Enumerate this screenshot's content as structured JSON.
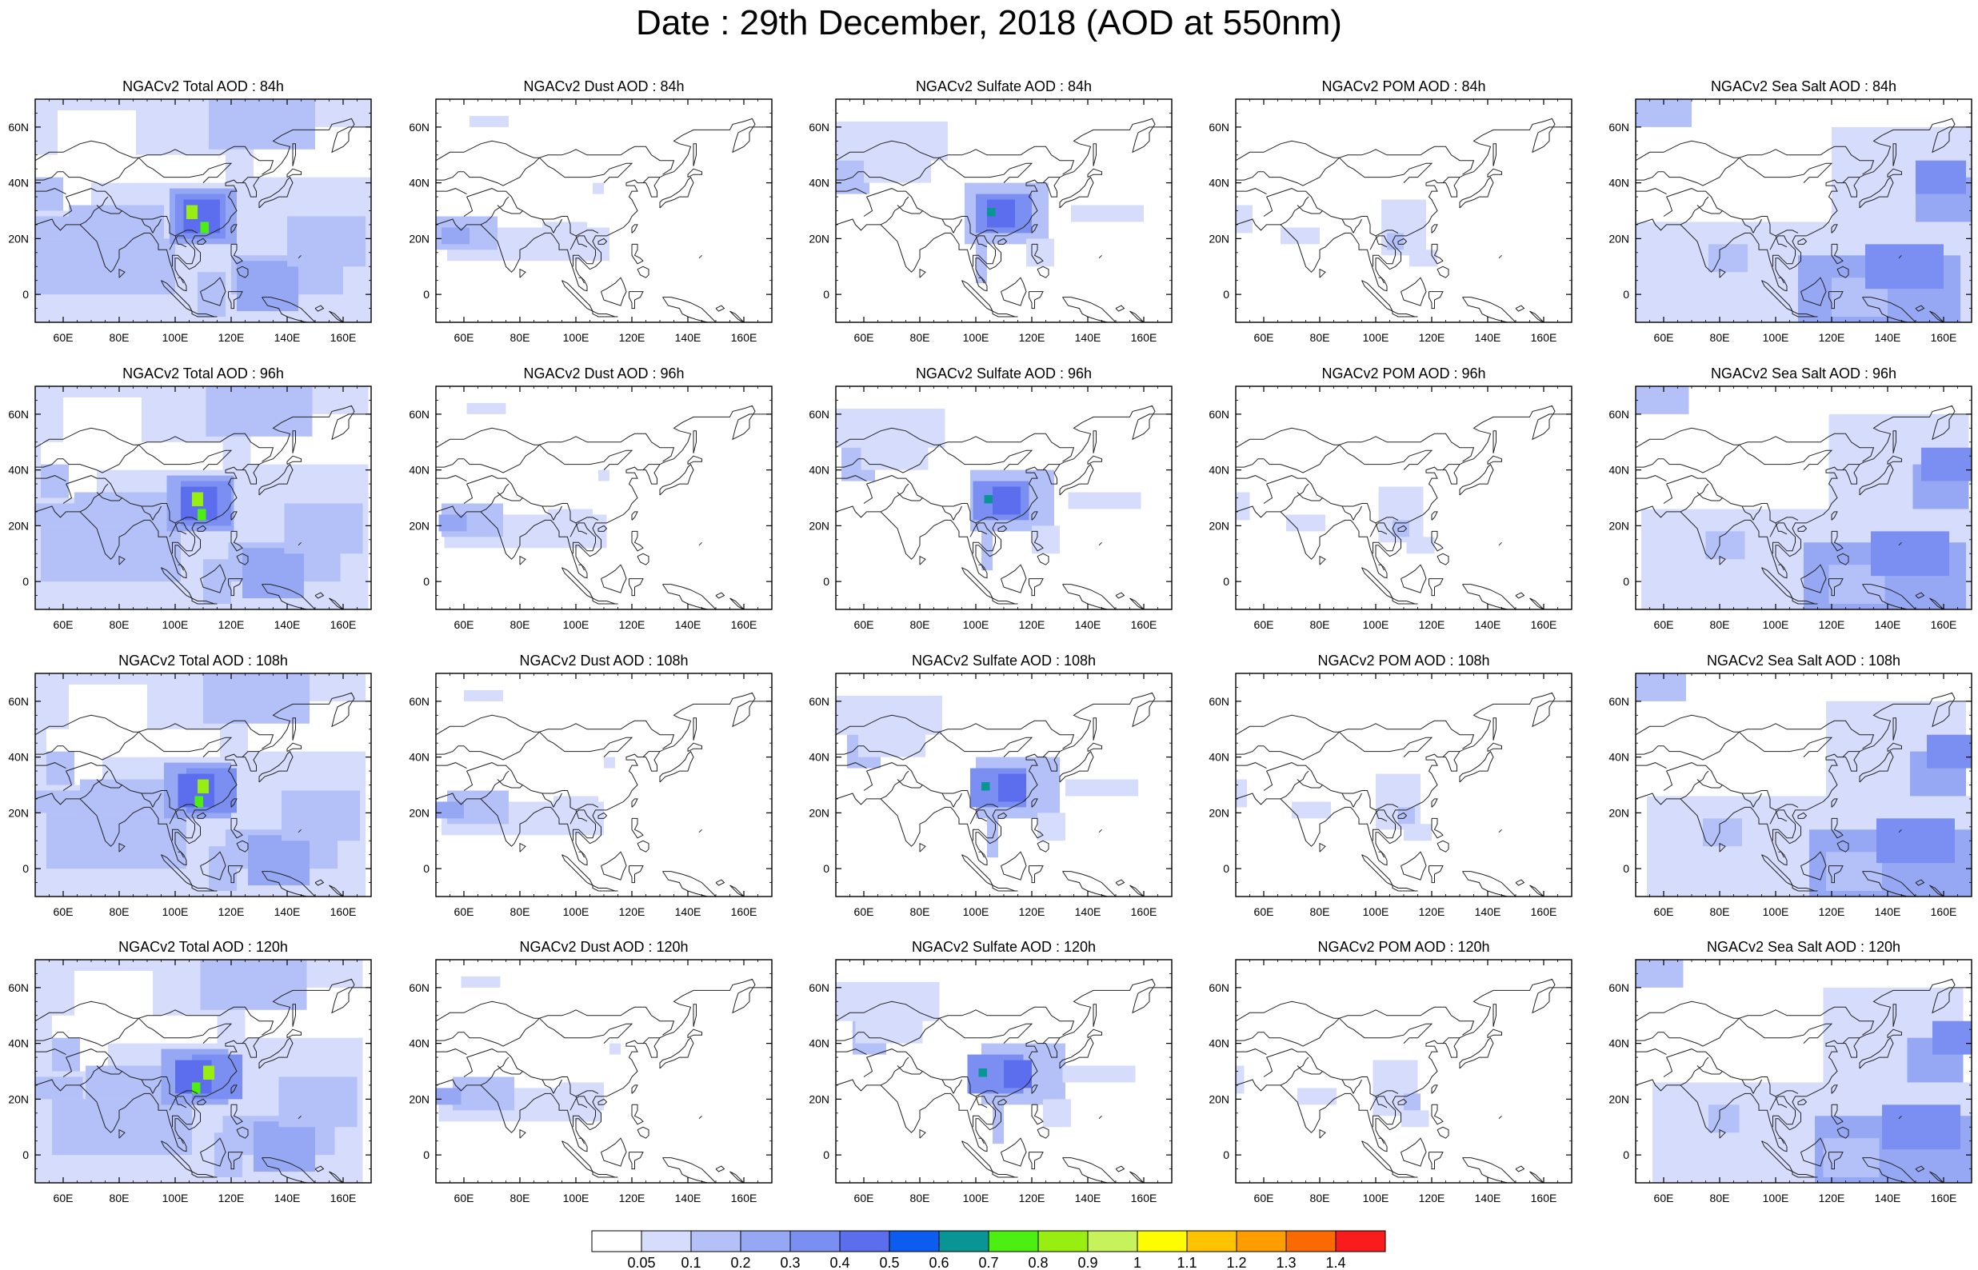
{
  "title": "Date : 29th December, 2018 (AOD at 550nm)",
  "panels": [
    [
      "NGACv2 Total AOD : 84h",
      "NGACv2 Dust AOD : 84h",
      "NGACv2 Sulfate AOD : 84h",
      "NGACv2 POM AOD : 84h",
      "NGACv2 Sea Salt AOD : 84h"
    ],
    [
      "NGACv2 Total AOD : 96h",
      "NGACv2 Dust AOD : 96h",
      "NGACv2 Sulfate AOD : 96h",
      "NGACv2 POM AOD : 96h",
      "NGACv2 Sea Salt AOD : 96h"
    ],
    [
      "NGACv2 Total AOD : 108h",
      "NGACv2 Dust AOD : 108h",
      "NGACv2 Sulfate AOD : 108h",
      "NGACv2 POM AOD : 108h",
      "NGACv2 Sea Salt AOD : 108h"
    ],
    [
      "NGACv2 Total AOD : 120h",
      "NGACv2 Dust AOD : 120h",
      "NGACv2 Sulfate AOD : 120h",
      "NGACv2 POM AOD : 120h",
      "NGACv2 Sea Salt  AOD : 120h"
    ]
  ],
  "lat_ticks": [
    {
      "label": "60N",
      "value": 60
    },
    {
      "label": "40N",
      "value": 40
    },
    {
      "label": "20N",
      "value": 20
    },
    {
      "label": "0",
      "value": 0
    }
  ],
  "lon_ticks": [
    {
      "label": "60E",
      "value": 60
    },
    {
      "label": "80E",
      "value": 80
    },
    {
      "label": "100E",
      "value": 100
    },
    {
      "label": "120E",
      "value": 120
    },
    {
      "label": "140E",
      "value": 140
    },
    {
      "label": "160E",
      "value": 160
    }
  ],
  "map_extent": {
    "lon": [
      50,
      170
    ],
    "lat": [
      -10,
      70
    ]
  },
  "colorbar": {
    "levels": [
      "0.05",
      "0.1",
      "0.2",
      "0.3",
      "0.4",
      "0.5",
      "0.6",
      "0.7",
      "0.8",
      "0.9",
      "1",
      "1.1",
      "1.2",
      "1.3",
      "1.4"
    ],
    "colors": [
      "#ffffff",
      "#d6dcfb",
      "#b4c0f8",
      "#96a8f4",
      "#7a8ff1",
      "#5c6ded",
      "#0c5cf0",
      "#0a9595",
      "#4dee11",
      "#98ee11",
      "#c6f35c",
      "#fdfd00",
      "#fdc200",
      "#fd9d00",
      "#fb6a00",
      "#f81c1c"
    ]
  },
  "colors": {
    "land_outline": "#222222",
    "axis": "#000000"
  }
}
